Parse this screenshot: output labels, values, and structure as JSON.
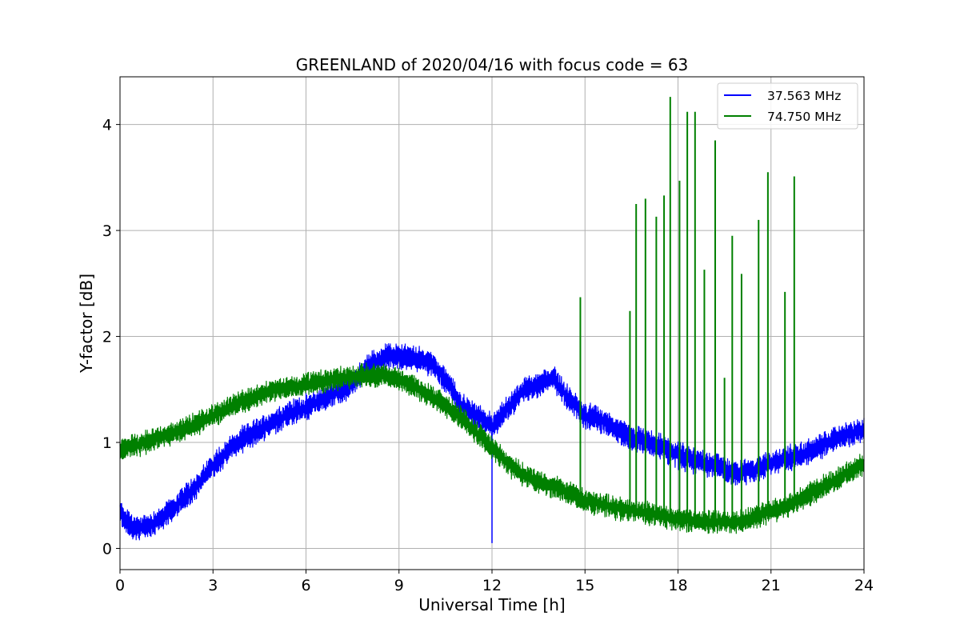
{
  "chart_data": {
    "type": "line",
    "title": "GREENLAND of 2020/04/16 with focus code = 63",
    "xlabel": "Universal Time [h]",
    "ylabel": "Y-factor [dB]",
    "xlim": [
      0,
      24
    ],
    "ylim": [
      -0.2,
      4.45
    ],
    "xticks": [
      0,
      3,
      6,
      9,
      12,
      15,
      18,
      21,
      24
    ],
    "yticks": [
      0,
      1,
      2,
      3,
      4
    ],
    "grid": true,
    "legend_position": "top-right",
    "series": [
      {
        "name": "37.563 MHz",
        "color": "#0000ff",
        "band_halfwidth": 0.11,
        "x": [
          0,
          0.5,
          1,
          1.5,
          2,
          2.5,
          3,
          3.5,
          4,
          4.5,
          5,
          5.5,
          6,
          6.5,
          7,
          7.5,
          8,
          8.5,
          9,
          9.5,
          10,
          10.5,
          11,
          11.5,
          12,
          12.5,
          13,
          13.5,
          14,
          14.5,
          15,
          15.5,
          16,
          16.5,
          17,
          17.5,
          18,
          18.5,
          19,
          19.5,
          20,
          20.5,
          21,
          21.5,
          22,
          22.5,
          23,
          23.5,
          24
        ],
        "values": [
          0.33,
          0.18,
          0.22,
          0.32,
          0.45,
          0.6,
          0.78,
          0.93,
          1.04,
          1.12,
          1.2,
          1.28,
          1.33,
          1.4,
          1.47,
          1.55,
          1.72,
          1.8,
          1.82,
          1.79,
          1.76,
          1.6,
          1.35,
          1.25,
          1.15,
          1.32,
          1.48,
          1.55,
          1.6,
          1.4,
          1.25,
          1.22,
          1.12,
          1.05,
          1.0,
          0.95,
          0.88,
          0.83,
          0.8,
          0.75,
          0.7,
          0.75,
          0.8,
          0.85,
          0.88,
          0.95,
          1.02,
          1.08,
          1.12
        ]
      },
      {
        "name": "74.750 MHz",
        "color": "#008000",
        "band_halfwidth": 0.1,
        "x": [
          0,
          0.5,
          1,
          1.5,
          2,
          2.5,
          3,
          3.5,
          4,
          4.5,
          5,
          5.5,
          6,
          6.5,
          7,
          7.5,
          8,
          8.5,
          9,
          9.5,
          10,
          10.5,
          11,
          11.5,
          12,
          12.5,
          13,
          13.5,
          14,
          14.5,
          15,
          15.5,
          16,
          16.5,
          17,
          17.5,
          18,
          18.5,
          19,
          19.5,
          20,
          20.5,
          21,
          21.5,
          22,
          22.5,
          23,
          23.5,
          24
        ],
        "values": [
          0.93,
          0.97,
          1.02,
          1.07,
          1.12,
          1.18,
          1.25,
          1.33,
          1.4,
          1.45,
          1.5,
          1.52,
          1.55,
          1.57,
          1.6,
          1.62,
          1.63,
          1.63,
          1.6,
          1.53,
          1.44,
          1.35,
          1.23,
          1.1,
          0.95,
          0.8,
          0.7,
          0.63,
          0.58,
          0.52,
          0.45,
          0.42,
          0.38,
          0.36,
          0.33,
          0.3,
          0.28,
          0.26,
          0.25,
          0.25,
          0.25,
          0.3,
          0.35,
          0.4,
          0.48,
          0.55,
          0.63,
          0.72,
          0.8
        ]
      }
    ],
    "low_spikes": [
      {
        "series": 0,
        "x": 12.0,
        "y": 0.05
      }
    ],
    "spikes": [
      {
        "series": 1,
        "x": 14.85,
        "y": 2.37
      },
      {
        "series": 1,
        "x": 16.45,
        "y": 2.24
      },
      {
        "series": 1,
        "x": 16.65,
        "y": 3.25
      },
      {
        "series": 1,
        "x": 16.95,
        "y": 3.3
      },
      {
        "series": 1,
        "x": 17.3,
        "y": 3.13
      },
      {
        "series": 1,
        "x": 17.55,
        "y": 3.33
      },
      {
        "series": 1,
        "x": 17.75,
        "y": 4.26
      },
      {
        "series": 1,
        "x": 18.05,
        "y": 3.47
      },
      {
        "series": 1,
        "x": 18.3,
        "y": 4.12
      },
      {
        "series": 1,
        "x": 18.55,
        "y": 4.12
      },
      {
        "series": 1,
        "x": 18.85,
        "y": 2.63
      },
      {
        "series": 1,
        "x": 19.2,
        "y": 3.85
      },
      {
        "series": 1,
        "x": 19.5,
        "y": 1.61
      },
      {
        "series": 1,
        "x": 19.75,
        "y": 2.95
      },
      {
        "series": 1,
        "x": 20.05,
        "y": 2.59
      },
      {
        "series": 1,
        "x": 20.6,
        "y": 3.1
      },
      {
        "series": 1,
        "x": 20.9,
        "y": 3.55
      },
      {
        "series": 1,
        "x": 21.45,
        "y": 2.42
      },
      {
        "series": 1,
        "x": 21.75,
        "y": 3.51
      }
    ]
  }
}
